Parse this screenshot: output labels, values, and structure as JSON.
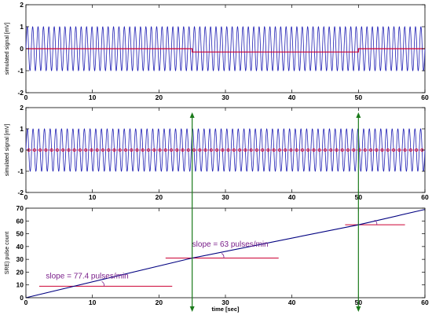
{
  "chart_data": [
    {
      "type": "line",
      "ylabel": "simulated signal [mV]",
      "xlim": [
        0,
        60
      ],
      "ylim": [
        -2,
        2
      ],
      "xticks": [
        0,
        10,
        20,
        30,
        40,
        50,
        60
      ],
      "yticks": [
        -2,
        -1,
        0,
        1,
        2
      ],
      "series": [
        {
          "kind": "sinusoid",
          "amplitude": 1,
          "cycles": 74,
          "color": "#1f1fb4"
        },
        {
          "kind": "step",
          "color": "#cc0033",
          "x": [
            0,
            25,
            25,
            50,
            50,
            60
          ],
          "y": [
            0,
            0,
            -0.15,
            -0.15,
            0,
            0
          ]
        }
      ]
    },
    {
      "type": "line",
      "ylabel": "simulated signal [mV]",
      "xlim": [
        0,
        60
      ],
      "ylim": [
        -2,
        2
      ],
      "xticks": [
        0,
        10,
        20,
        30,
        40,
        50,
        60
      ],
      "yticks": [
        -2,
        -1,
        0,
        1,
        2
      ],
      "series": [
        {
          "kind": "sinusoid",
          "amplitude": 1,
          "cycles": 70,
          "color": "#1f1fb4"
        },
        {
          "kind": "zero-crossing-markers",
          "y": 0,
          "count": 70,
          "color": "#cc0033"
        }
      ]
    },
    {
      "type": "line",
      "ylabel": "SRE) pulse count",
      "xlabel": "time [sec]",
      "xlim": [
        0,
        60
      ],
      "ylim": [
        0,
        70
      ],
      "xticks": [
        0,
        10,
        20,
        30,
        40,
        50,
        60
      ],
      "yticks": [
        0,
        10,
        20,
        30,
        40,
        50,
        60,
        70
      ],
      "series": [
        {
          "color": "#000080",
          "x": [
            0,
            25,
            50,
            60
          ],
          "y": [
            0,
            31,
            57,
            69
          ]
        }
      ],
      "reference_lines": [
        {
          "x": [
            2,
            22
          ],
          "y": 9,
          "color": "#cc0033"
        },
        {
          "x": [
            21,
            38
          ],
          "y": 31,
          "color": "#cc0033"
        },
        {
          "x": [
            48,
            57
          ],
          "y": 57,
          "color": "#cc0033"
        }
      ],
      "annotations": [
        {
          "text": "slope = 77.4 pulses/min",
          "x": 3,
          "y": 15
        },
        {
          "text": "slope = 63 pulses/min",
          "x": 25,
          "y": 40
        },
        {
          "text": "",
          "x": 49,
          "y": 57
        }
      ]
    }
  ],
  "markers": {
    "vertical_arrows_x": [
      25,
      50
    ],
    "color": "#1a7a1a"
  }
}
